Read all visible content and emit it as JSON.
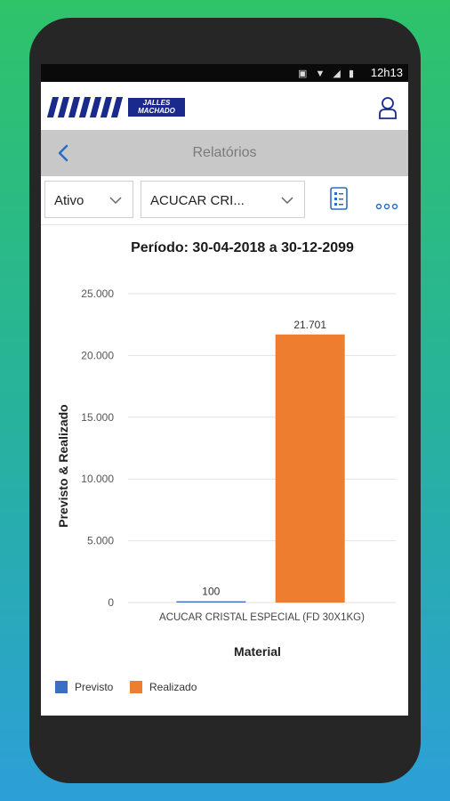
{
  "status_bar": {
    "time": "12h13"
  },
  "header": {
    "logo_line1": "JALLES",
    "logo_line2": "MACHADO"
  },
  "titlebar": {
    "title": "Relatórios"
  },
  "filters": {
    "status_select": "Ativo",
    "material_select": "ACUCAR CRI..."
  },
  "report": {
    "period": "Período: 30-04-2018 a 30-12-2099"
  },
  "chart_data": {
    "type": "bar",
    "categories": [
      "ACUCAR CRISTAL ESPECIAL (FD 30X1KG)"
    ],
    "series": [
      {
        "name": "Previsto",
        "values": [
          100
        ],
        "color": "#3a6fc4"
      },
      {
        "name": "Realizado",
        "values": [
          21701
        ],
        "color": "#ef7d2f"
      }
    ],
    "data_labels": [
      "100",
      "21.701"
    ],
    "yticks": [
      0,
      5000,
      10000,
      15000,
      20000,
      25000
    ],
    "ytick_labels": [
      "0",
      "5.000",
      "10.000",
      "15.000",
      "20.000",
      "25.000"
    ],
    "ylim": [
      0,
      25000
    ],
    "ylabel": "Previsto & Realizado",
    "xlabel": "Material",
    "legend": "bottom-left",
    "grid": true
  }
}
